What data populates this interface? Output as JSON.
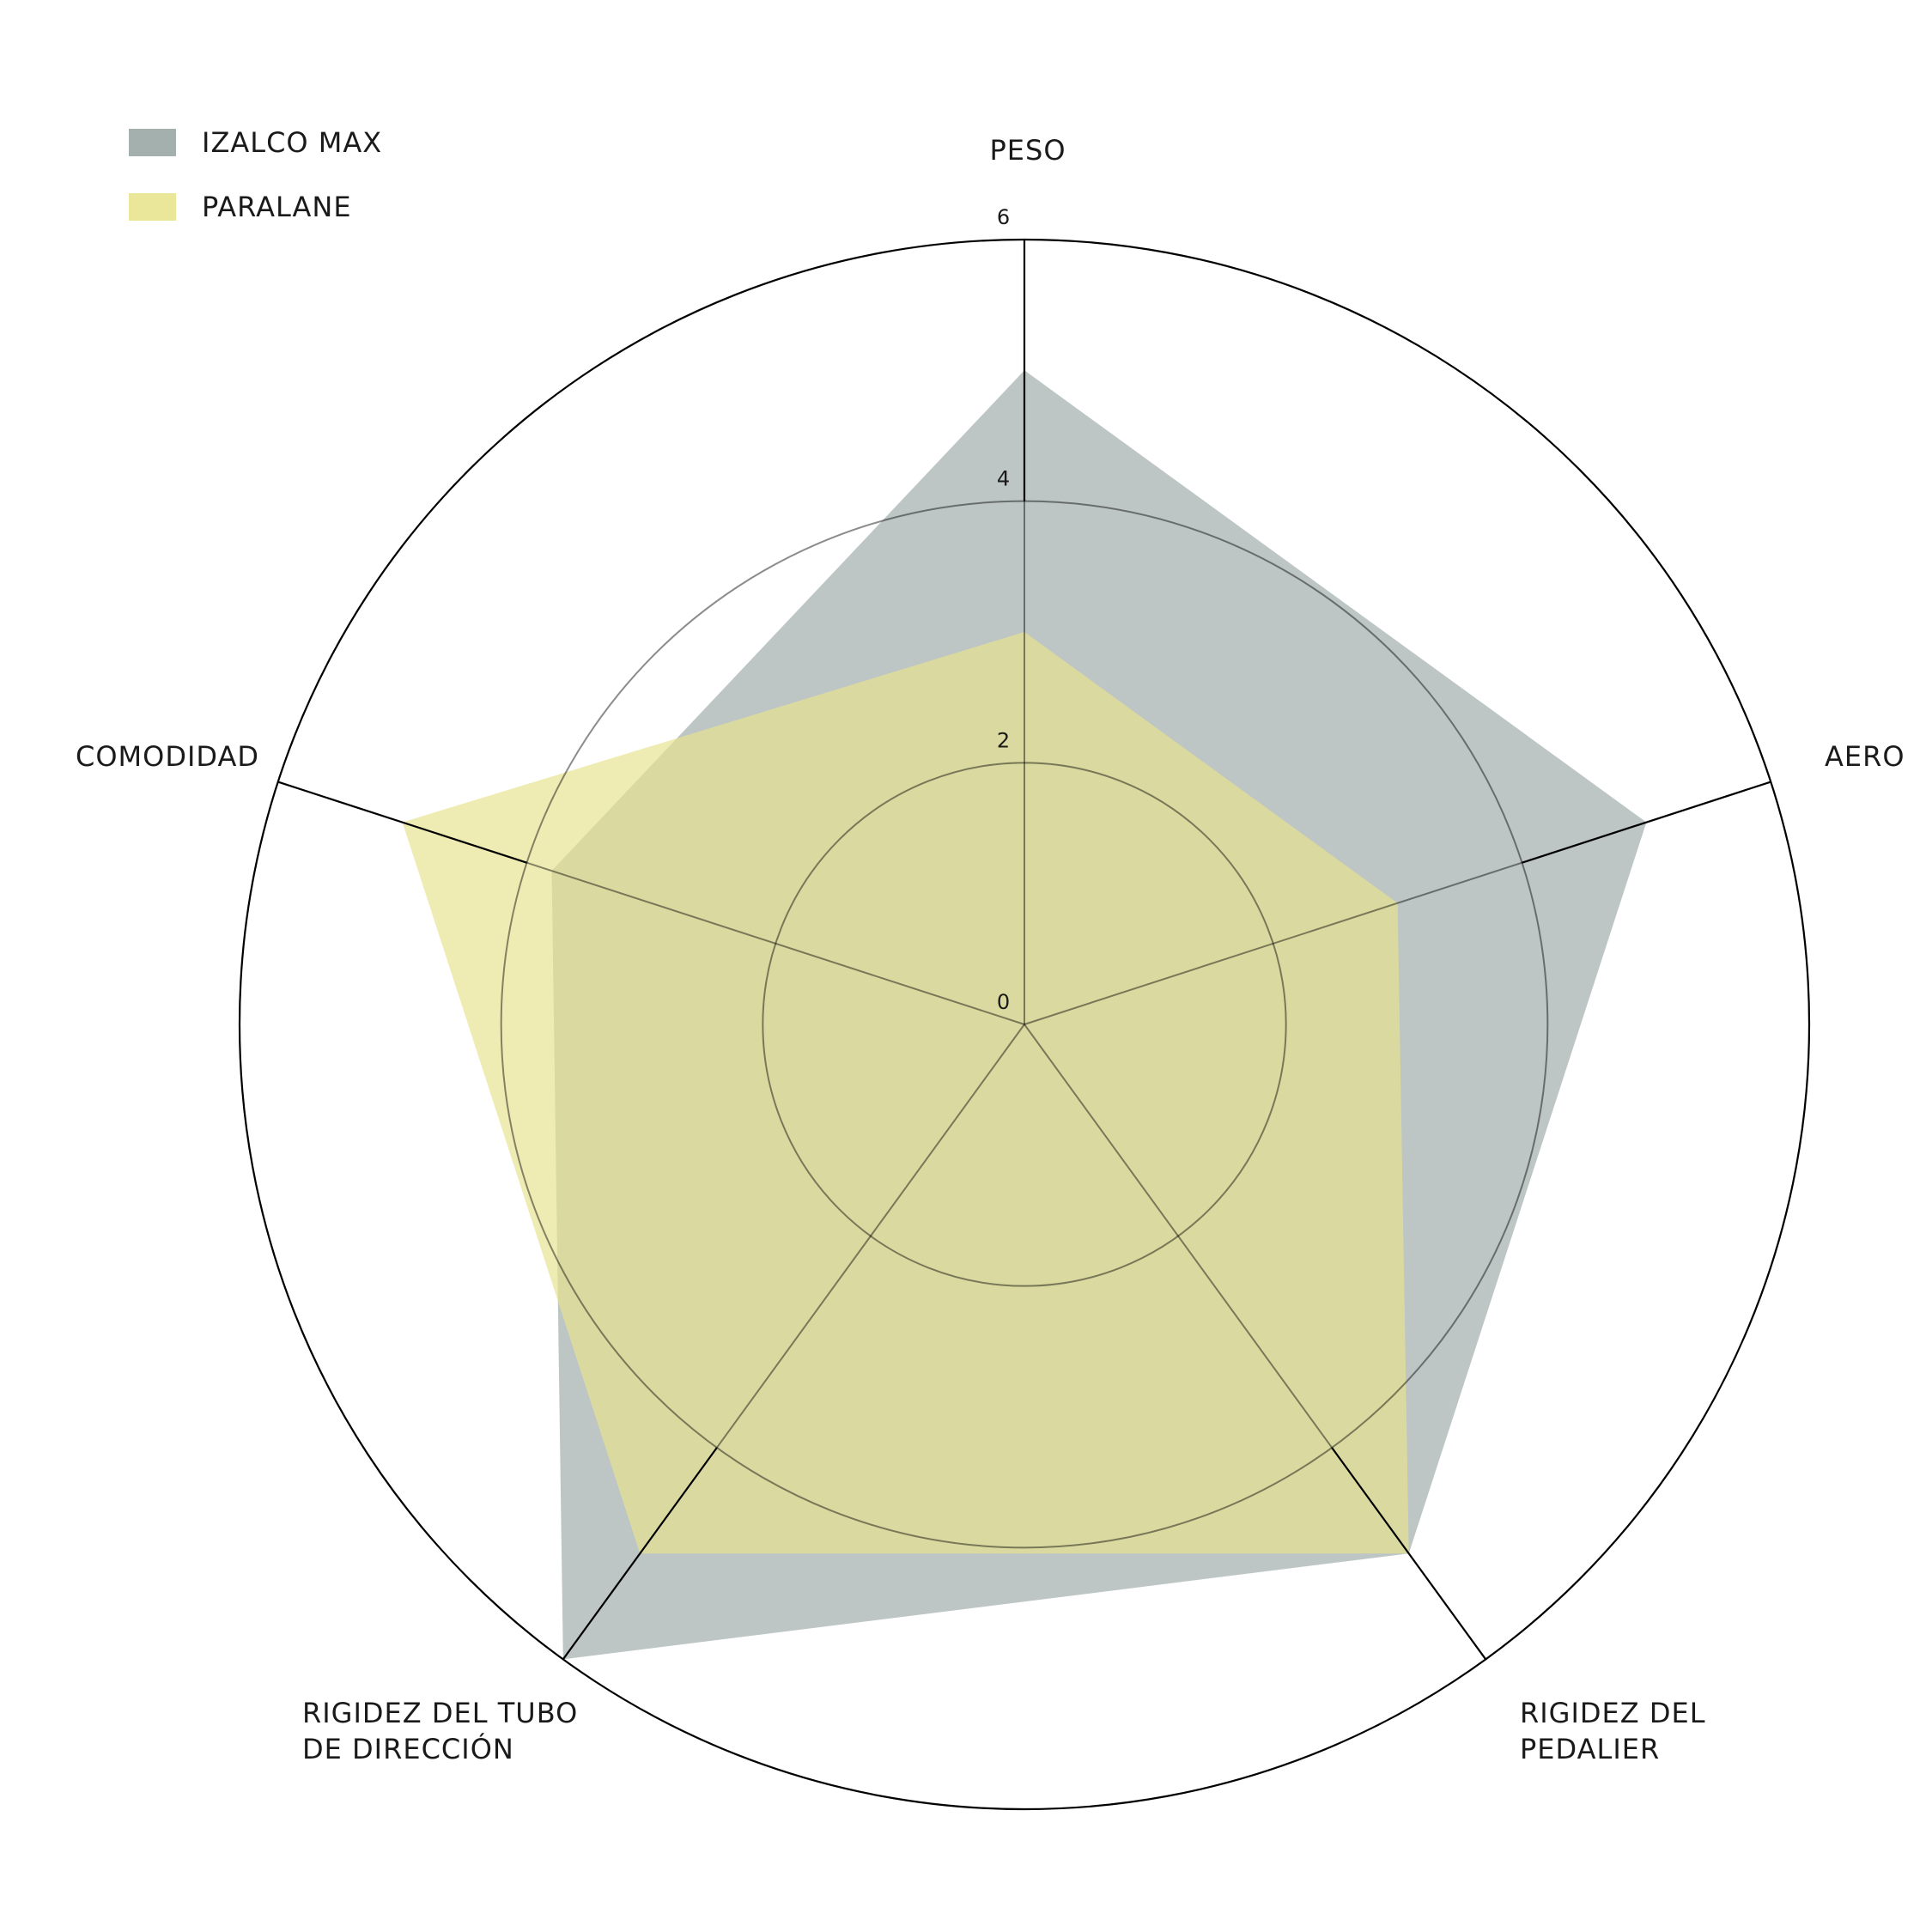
{
  "chart_data": {
    "type": "radar",
    "axes": [
      {
        "label_lines": [
          "PESO"
        ]
      },
      {
        "label_lines": [
          "AERO"
        ]
      },
      {
        "label_lines": [
          "RIGIDEZ DEL",
          "PEDALIER"
        ]
      },
      {
        "label_lines": [
          "RIGIDEZ DEL TUBO",
          "DE DIRECCIÓN"
        ]
      },
      {
        "label_lines": [
          "COMODIDAD"
        ]
      }
    ],
    "range": [
      0,
      6
    ],
    "ticks": [
      0,
      2,
      4,
      6
    ],
    "series": [
      {
        "name": "IZALCO MAX",
        "color": "#a4b0ad",
        "values": [
          5.0,
          5.0,
          5.0,
          6.0,
          3.8
        ]
      },
      {
        "name": "PARALANE",
        "color": "#e8e38f",
        "values": [
          3.0,
          3.0,
          5.0,
          5.0,
          5.0
        ]
      }
    ],
    "legend_position": "top-left",
    "grid": true
  }
}
